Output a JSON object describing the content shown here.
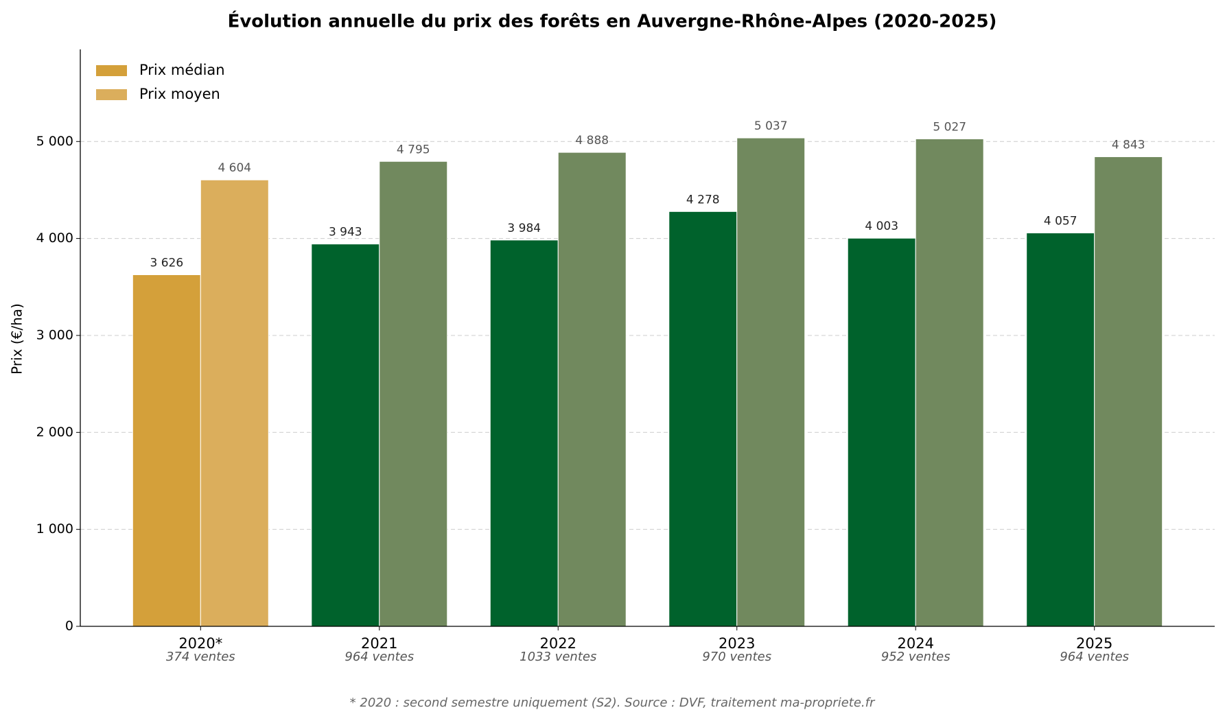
{
  "chart_data": {
    "type": "bar",
    "title": "Évolution annuelle du prix des forêts en Auvergne-Rhône-Alpes (2020-2025)",
    "ylabel": "Prix (€/ha)",
    "footnote": "* 2020 : second semestre uniquement (S2). Source : DVF, traitement ma-propriete.fr",
    "categories": [
      "2020*",
      "2021",
      "2022",
      "2023",
      "2024",
      "2025"
    ],
    "category_notes": [
      "374 ventes",
      "964 ventes",
      "1033 ventes",
      "970 ventes",
      "952 ventes",
      "964 ventes"
    ],
    "series": [
      {
        "name": "Prix médian",
        "color": "#d4a03a",
        "colors": [
          "#d4a03a",
          "#00622c",
          "#00622c",
          "#00622c",
          "#00622c",
          "#00622c"
        ],
        "values": [
          3626,
          3943,
          3984,
          4278,
          4003,
          4057
        ],
        "value_labels": [
          "3 626",
          "3 943",
          "3 984",
          "4 278",
          "4 003",
          "4 057"
        ]
      },
      {
        "name": "Prix moyen",
        "color": "#dbae5c",
        "colors": [
          "#dbae5c",
          "#71895e",
          "#71895e",
          "#71895e",
          "#71895e",
          "#71895e"
        ],
        "values": [
          4604,
          4795,
          4888,
          5037,
          5027,
          4843
        ],
        "value_labels": [
          "4 604",
          "4 795",
          "4 888",
          "5 037",
          "5 027",
          "4 843"
        ]
      }
    ],
    "ylim": [
      0,
      5950
    ],
    "yticks": [
      0,
      {
        "value": 1000,
        "label": "1 000"
      },
      {
        "value": 2000,
        "label": "2 000"
      },
      {
        "value": 3000,
        "label": "3 000"
      },
      {
        "value": 4000,
        "label": "4 000"
      },
      {
        "value": 5000,
        "label": "5 000"
      }
    ],
    "grid": true,
    "legend": "upper left"
  }
}
